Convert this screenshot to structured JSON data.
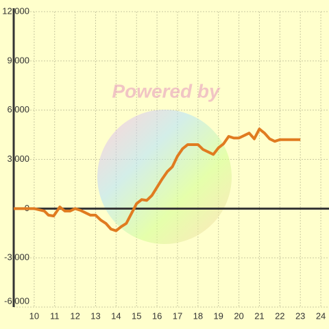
{
  "chart_data": {
    "type": "line",
    "watermark": "Powered by",
    "x": [
      9,
      10,
      10.5,
      10.7,
      10.95,
      11.25,
      11.5,
      11.75,
      12,
      12.25,
      12.5,
      12.75,
      13,
      13.25,
      13.5,
      13.75,
      14,
      14.25,
      14.5,
      14.75,
      15,
      15.25,
      15.5,
      15.75,
      16,
      16.25,
      16.5,
      16.75,
      17,
      17.25,
      17.5,
      17.75,
      18,
      18.25,
      18.5,
      18.75,
      19,
      19.25,
      19.5,
      19.75,
      20,
      20.25,
      20.5,
      20.75,
      21,
      21.25,
      21.5,
      21.75,
      22,
      22.5,
      23
    ],
    "series": [
      {
        "color": "#e07b20",
        "values": [
          0,
          0,
          -150,
          -400,
          -450,
          100,
          -150,
          -150,
          0,
          -100,
          -250,
          -400,
          -400,
          -700,
          -900,
          -1250,
          -1350,
          -1100,
          -900,
          -300,
          300,
          550,
          500,
          800,
          1300,
          1800,
          2250,
          2550,
          3200,
          3650,
          3900,
          3900,
          3900,
          3600,
          3450,
          3300,
          3700,
          3950,
          4400,
          4300,
          4300,
          4450,
          4600,
          4250,
          4850,
          4600,
          4250,
          4100,
          4200,
          4200,
          4200
        ]
      }
    ],
    "xlim": [
      9,
      24.4
    ],
    "xticks": [
      10,
      11,
      12,
      13,
      14,
      15,
      16,
      17,
      18,
      19,
      20,
      21,
      22,
      23,
      24
    ],
    "ylim": [
      -6000,
      12000
    ],
    "yticks": [
      {
        "value": -6000,
        "label": "-6,000"
      },
      {
        "value": -3000,
        "label": "-3,000"
      },
      0,
      {
        "value": 3000,
        "label": "3,000"
      },
      {
        "value": 6000,
        "label": "6,000"
      },
      {
        "value": 9000,
        "label": "9,000"
      },
      {
        "value": 12000,
        "label": "12,000"
      }
    ],
    "grid": true
  }
}
